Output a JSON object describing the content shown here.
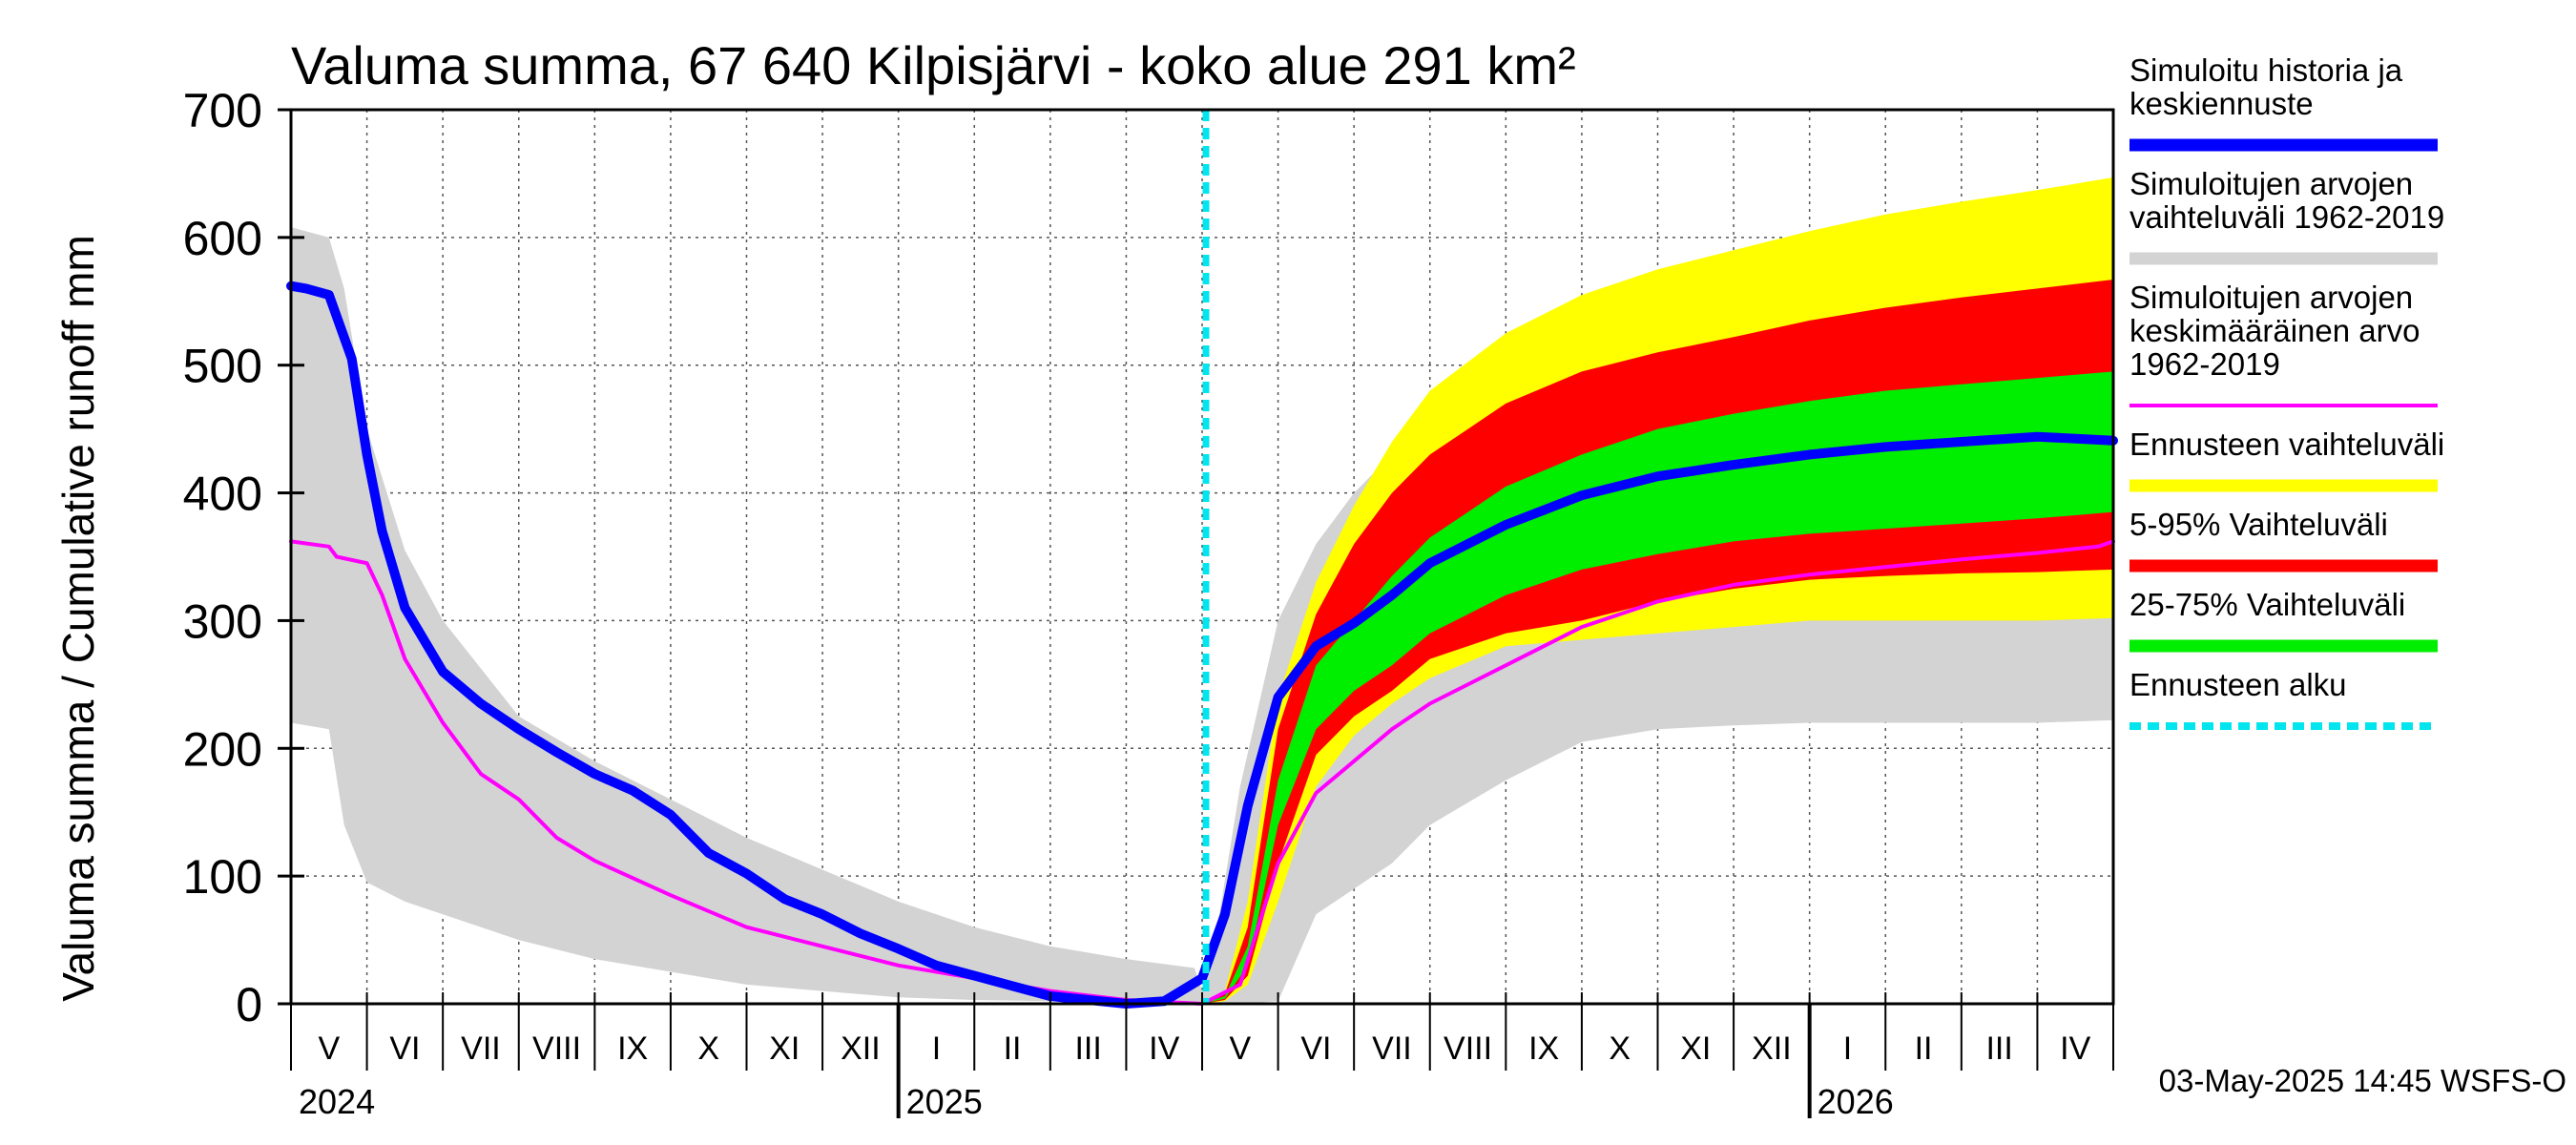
{
  "chart_data": {
    "type": "area",
    "title": "Valuma summa, 67 640 Kilpisjärvi - koko alue 291 km²",
    "ylabel": "Valuma summa / Cumulative runoff    mm",
    "ylim": [
      0,
      700
    ],
    "yticks": [
      0,
      100,
      200,
      300,
      400,
      500,
      600,
      700
    ],
    "forecast_start": "2025-05-03",
    "months": [
      "V",
      "VI",
      "VII",
      "VIII",
      "IX",
      "X",
      "XI",
      "XII",
      "I",
      "II",
      "III",
      "IV",
      "V",
      "VI",
      "VII",
      "VIII",
      "IX",
      "X",
      "XI",
      "XII",
      "I",
      "II",
      "III",
      "IV"
    ],
    "years": [
      {
        "label": "2024",
        "month_index": 0
      },
      {
        "label": "2025",
        "month_index": 8
      },
      {
        "label": "2026",
        "month_index": 20
      }
    ],
    "series": [
      {
        "name": "hist_range",
        "label": "Simuloitujen arvojen vaihteluväli 1962-2019",
        "color": "#d3d3d3",
        "x": [
          0,
          0.5,
          0.7,
          1.0,
          1.5,
          2,
          3,
          4,
          5,
          6,
          7,
          8,
          9,
          10,
          11,
          11.9,
          12,
          12.2,
          12.5,
          13,
          13.5,
          14,
          14.5,
          15,
          16,
          17,
          18,
          19,
          20,
          21,
          22,
          23,
          24
        ],
        "upper": [
          608,
          600,
          560,
          450,
          355,
          300,
          225,
          190,
          160,
          130,
          105,
          80,
          60,
          45,
          35,
          28,
          10,
          60,
          170,
          300,
          360,
          400,
          430,
          460,
          495,
          525,
          545,
          560,
          572,
          582,
          590,
          597,
          603
        ],
        "lower": [
          220,
          215,
          140,
          95,
          80,
          70,
          50,
          35,
          25,
          15,
          10,
          5,
          3,
          2,
          0,
          0,
          0,
          0,
          0,
          2,
          70,
          90,
          110,
          140,
          175,
          205,
          215,
          218,
          220,
          220,
          220,
          220,
          222
        ]
      },
      {
        "name": "forecast_range",
        "label": "Ennusteen vaihteluväli",
        "color": "#ffff00",
        "x": [
          12,
          12.3,
          12.6,
          13,
          13.5,
          14,
          14.5,
          15,
          16,
          17,
          18,
          19,
          20,
          21,
          22,
          23,
          24
        ],
        "upper": [
          0,
          10,
          80,
          240,
          330,
          390,
          440,
          480,
          525,
          555,
          575,
          590,
          605,
          618,
          628,
          637,
          647
        ],
        "lower": [
          0,
          2,
          15,
          80,
          170,
          210,
          235,
          255,
          280,
          285,
          290,
          295,
          300,
          300,
          300,
          300,
          302
        ]
      },
      {
        "name": "p5_95",
        "label": "5-95% Vaihteluväli",
        "color": "#ff0000",
        "x": [
          12,
          12.3,
          12.6,
          13,
          13.5,
          14,
          14.5,
          15,
          16,
          17,
          18,
          19,
          20,
          21,
          22,
          23,
          24
        ],
        "upper": [
          0,
          8,
          60,
          215,
          305,
          360,
          400,
          430,
          470,
          495,
          510,
          522,
          535,
          545,
          553,
          560,
          567
        ],
        "lower": [
          0,
          3,
          22,
          110,
          195,
          225,
          245,
          270,
          290,
          300,
          315,
          325,
          332,
          335,
          337,
          338,
          340
        ]
      },
      {
        "name": "p25_75",
        "label": "25-75% Vaihteluväli",
        "color": "#00ee00",
        "x": [
          12,
          12.3,
          12.6,
          13,
          13.5,
          14,
          14.5,
          15,
          16,
          17,
          18,
          19,
          20,
          21,
          22,
          23,
          24
        ],
        "upper": [
          0,
          6,
          45,
          175,
          265,
          300,
          335,
          365,
          405,
          430,
          450,
          462,
          472,
          480,
          485,
          490,
          495
        ],
        "lower": [
          0,
          4,
          30,
          140,
          215,
          245,
          265,
          290,
          320,
          340,
          352,
          362,
          368,
          372,
          376,
          380,
          385
        ]
      },
      {
        "name": "mean",
        "label": "Simuloitujen arvojen keskimääräinen arvo 1962-2019",
        "color": "#ff00ff",
        "x": [
          0,
          0.5,
          0.6,
          1.0,
          1.2,
          1.5,
          2,
          2.5,
          3,
          3.5,
          4,
          5,
          6,
          7,
          8,
          9,
          10,
          11,
          12,
          12.5,
          13,
          13.5,
          14,
          14.5,
          15,
          16,
          17,
          18,
          19,
          20,
          21,
          22,
          23,
          23.8,
          24
        ],
        "y": [
          362,
          358,
          350,
          345,
          320,
          270,
          220,
          180,
          160,
          130,
          112,
          85,
          60,
          45,
          30,
          20,
          10,
          3,
          0,
          15,
          110,
          165,
          190,
          215,
          235,
          265,
          295,
          315,
          328,
          336,
          342,
          348,
          353,
          358,
          362
        ]
      },
      {
        "name": "history",
        "label": "Simuloitu historia ja keskiennuste",
        "color": "#0000ff",
        "x": [
          0,
          0.2,
          0.5,
          0.8,
          1.0,
          1.2,
          1.5,
          2,
          2.5,
          3,
          3.5,
          4,
          4.5,
          5,
          5.5,
          6,
          6.5,
          7,
          7.5,
          8,
          8.5,
          9,
          9.5,
          10,
          10.5,
          11,
          11.5,
          12,
          12.3,
          12.6,
          13,
          13.5,
          14,
          14.5,
          15,
          16,
          17,
          18,
          19,
          20,
          21,
          22,
          23,
          24
        ],
        "y": [
          562,
          560,
          555,
          505,
          430,
          370,
          310,
          260,
          235,
          215,
          197,
          180,
          167,
          148,
          118,
          102,
          82,
          70,
          55,
          43,
          30,
          22,
          14,
          6,
          3,
          0,
          2,
          20,
          70,
          155,
          240,
          280,
          298,
          320,
          345,
          375,
          398,
          413,
          422,
          430,
          436,
          440,
          444,
          441
        ]
      }
    ],
    "legend": [
      {
        "lines": [
          "Simuloitu historia ja",
          "keskiennuste"
        ],
        "color": "#0000ff",
        "style": "solid"
      },
      {
        "lines": [
          "Simuloitujen arvojen",
          "vaihteluväli 1962-2019"
        ],
        "color": "#d3d3d3",
        "style": "solid"
      },
      {
        "lines": [
          "Simuloitujen arvojen",
          "keskimääräinen arvo",
          "   1962-2019"
        ],
        "color": "#ff00ff",
        "style": "thin"
      },
      {
        "lines": [
          "Ennusteen vaihteluväli"
        ],
        "color": "#ffff00",
        "style": "solid"
      },
      {
        "lines": [
          "5-95% Vaihteluväli"
        ],
        "color": "#ff0000",
        "style": "solid"
      },
      {
        "lines": [
          "25-75% Vaihteluväli"
        ],
        "color": "#00ee00",
        "style": "solid"
      },
      {
        "lines": [
          "Ennusteen alku"
        ],
        "color": "#00e5ee",
        "style": "dashed"
      }
    ],
    "footer": "03-May-2025 14:45 WSFS-O"
  }
}
